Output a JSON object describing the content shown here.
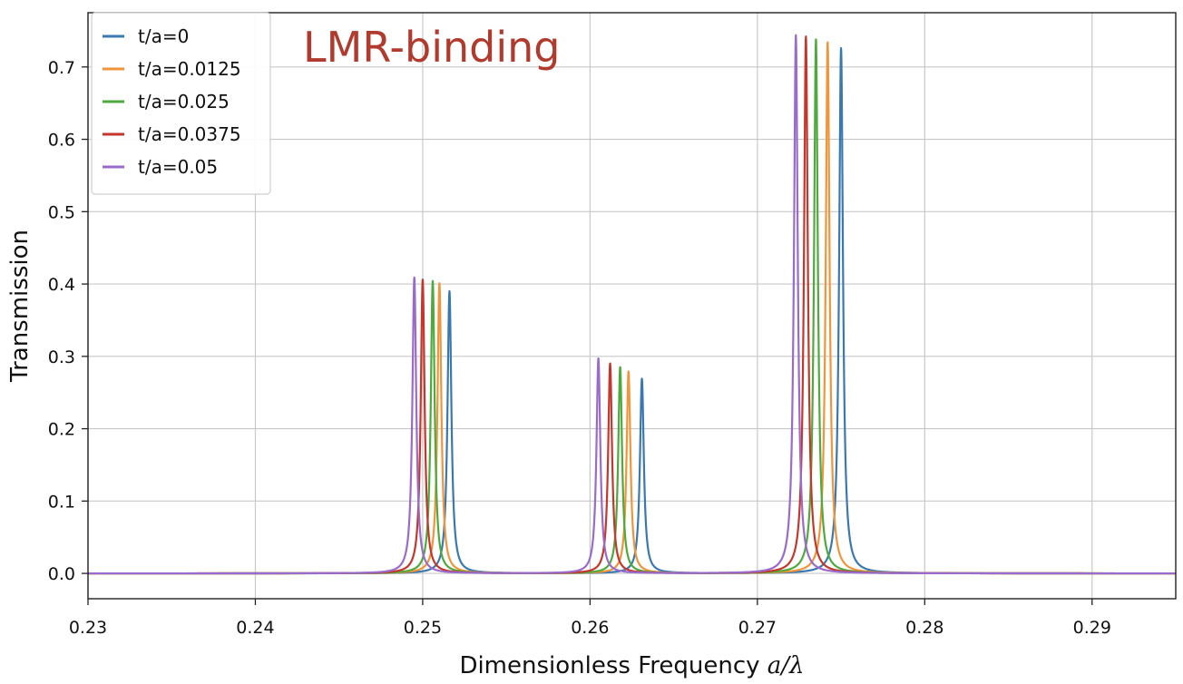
{
  "chart_data": {
    "type": "line",
    "title": "",
    "xlabel": "Dimensionless Frequency a/λ",
    "ylabel": "Transmission",
    "xlim": [
      0.23,
      0.295
    ],
    "ylim": [
      -0.035,
      0.775
    ],
    "xticks": [
      0.23,
      0.24,
      0.25,
      0.26,
      0.27,
      0.28,
      0.29
    ],
    "xtick_labels": [
      "0.23",
      "0.24",
      "0.25",
      "0.26",
      "0.27",
      "0.28",
      "0.29"
    ],
    "yticks": [
      0.0,
      0.1,
      0.2,
      0.3,
      0.4,
      0.5,
      0.6,
      0.7
    ],
    "ytick_labels": [
      "0.0",
      "0.1",
      "0.2",
      "0.3",
      "0.4",
      "0.5",
      "0.6",
      "0.7"
    ],
    "grid": true,
    "legend_position": "top-left",
    "annotation": {
      "text": "LMR-binding",
      "color": "#b03a2e"
    },
    "series": [
      {
        "name": "t/a=0",
        "color": "#3a78b0",
        "peaks": [
          {
            "x": 0.2516,
            "y": 0.39
          },
          {
            "x": 0.2631,
            "y": 0.269
          },
          {
            "x": 0.275,
            "y": 0.726
          }
        ]
      },
      {
        "name": "t/a=0.0125",
        "color": "#f0953a",
        "peaks": [
          {
            "x": 0.251,
            "y": 0.401
          },
          {
            "x": 0.2623,
            "y": 0.279
          },
          {
            "x": 0.2742,
            "y": 0.734
          }
        ]
      },
      {
        "name": "t/a=0.025",
        "color": "#4eaa3c",
        "peaks": [
          {
            "x": 0.2506,
            "y": 0.404
          },
          {
            "x": 0.2618,
            "y": 0.285
          },
          {
            "x": 0.2735,
            "y": 0.738
          }
        ]
      },
      {
        "name": "t/a=0.0375",
        "color": "#c5362d",
        "peaks": [
          {
            "x": 0.25,
            "y": 0.406
          },
          {
            "x": 0.2612,
            "y": 0.29
          },
          {
            "x": 0.2729,
            "y": 0.742
          }
        ]
      },
      {
        "name": "t/a=0.05",
        "color": "#9a6bcb",
        "peaks": [
          {
            "x": 0.2495,
            "y": 0.409
          },
          {
            "x": 0.2605,
            "y": 0.297
          },
          {
            "x": 0.2723,
            "y": 0.744
          }
        ]
      }
    ]
  }
}
